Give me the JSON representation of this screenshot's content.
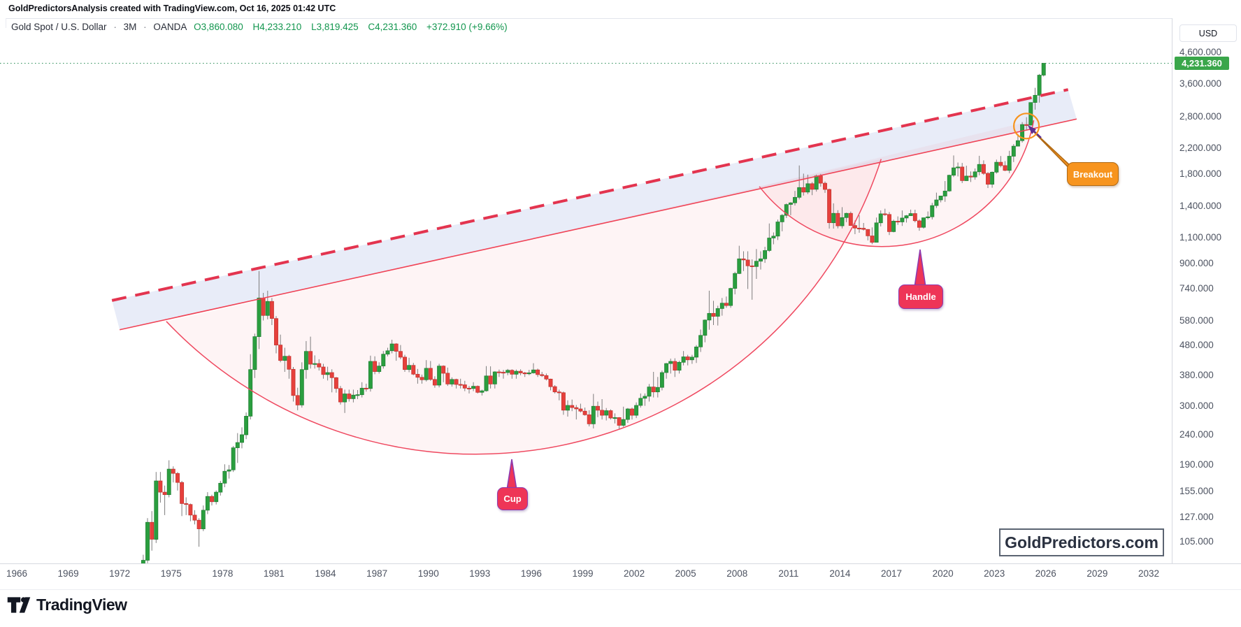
{
  "header": {
    "annotation": "GoldPredictorsAnalysis created with TradingView.com, Oct 16, 2025 01:42 UTC",
    "legend": {
      "symbol": "Gold Spot / U.S. Dollar",
      "sep": "·",
      "interval": "3M",
      "exchange": "OANDA",
      "open": "O3,860.080",
      "high": "H4,233.210",
      "low": "L3,819.425",
      "close": "C4,231.360",
      "change": "+372.910 (+9.66%)"
    }
  },
  "price_axis": {
    "currency": "USD",
    "last_price": {
      "label": "4,231.360",
      "value": 4231.36
    },
    "ticks": [
      {
        "label": "4,600.000",
        "value": 4600
      },
      {
        "label": "3,600.000",
        "value": 3600
      },
      {
        "label": "2,800.000",
        "value": 2800
      },
      {
        "label": "2,200.000",
        "value": 2200
      },
      {
        "label": "1,800.000",
        "value": 1800
      },
      {
        "label": "1,400.000",
        "value": 1400
      },
      {
        "label": "1,100.000",
        "value": 1100
      },
      {
        "label": "900.000",
        "value": 900
      },
      {
        "label": "740.000",
        "value": 740
      },
      {
        "label": "580.000",
        "value": 580
      },
      {
        "label": "480.000",
        "value": 480
      },
      {
        "label": "380.000",
        "value": 380
      },
      {
        "label": "300.000",
        "value": 300
      },
      {
        "label": "240.000",
        "value": 240
      },
      {
        "label": "190.000",
        "value": 190
      },
      {
        "label": "155.000",
        "value": 155
      },
      {
        "label": "127.000",
        "value": 127
      },
      {
        "label": "105.000",
        "value": 105
      }
    ]
  },
  "time_axis": {
    "years": [
      1966,
      1969,
      1972,
      1975,
      1978,
      1981,
      1984,
      1987,
      1990,
      1993,
      1996,
      1999,
      2002,
      2005,
      2008,
      2011,
      2014,
      2017,
      2020,
      2023,
      2026,
      2029,
      2032
    ]
  },
  "annotations": {
    "cup": "Cup",
    "handle": "Handle",
    "breakout": "Breakout"
  },
  "watermark": {
    "text": "GoldPredictors.com"
  },
  "footer": {
    "logo_text": "TradingView"
  },
  "colors": {
    "up": "#2a9e3f",
    "up_border": "#1f7e31",
    "down": "#e6403c",
    "down_border": "#c2322e",
    "wick": "#7d7d7d",
    "trend_red": "#e3344f",
    "arc_red": "#ef4960",
    "band_blue": "rgba(150,170,225,0.22)",
    "pattern_pink": "rgba(238,96,110,0.065)",
    "orange": "#f7941e",
    "purple": "#5c2e91",
    "price_label_bg": "#3aa64a",
    "dotted_line": "#2a8c55"
  },
  "chart_data": {
    "type": "candlestick",
    "title": "Gold Spot / U.S. Dollar",
    "interval": "3M",
    "exchange": "OANDA",
    "scale": "log",
    "x_domain_years": [
      1966,
      2032
    ],
    "x_tick_step_years": 3,
    "y_ticks": [
      4600,
      3600,
      2800,
      2200,
      1800,
      1400,
      1100,
      900,
      740,
      580,
      480,
      380,
      300,
      240,
      190,
      155,
      127,
      105
    ],
    "current_bar": {
      "open": 3860.08,
      "high": 4233.21,
      "low": 3819.425,
      "close": 4231.36,
      "change": 372.91,
      "change_pct": 9.66
    },
    "first_candle": "1973Q2",
    "candles_ohlc": [
      [
        85,
        95,
        82,
        91
      ],
      [
        91,
        126,
        89,
        122
      ],
      [
        122,
        133,
        98,
        107
      ],
      [
        107,
        180,
        104,
        168
      ],
      [
        168,
        180,
        142,
        154
      ],
      [
        154,
        162,
        129,
        151
      ],
      [
        151,
        197,
        148,
        184
      ],
      [
        184,
        188,
        166,
        178
      ],
      [
        178,
        180,
        156,
        166
      ],
      [
        166,
        168,
        128,
        141
      ],
      [
        141,
        148,
        129,
        140
      ],
      [
        140,
        141,
        123,
        129
      ],
      [
        129,
        134,
        120,
        124
      ],
      [
        124,
        126,
        101,
        116
      ],
      [
        116,
        139,
        114,
        134
      ],
      [
        134,
        154,
        130,
        149
      ],
      [
        149,
        151,
        139,
        143
      ],
      [
        143,
        156,
        140,
        154
      ],
      [
        154,
        168,
        150,
        165
      ],
      [
        165,
        191,
        160,
        181
      ],
      [
        181,
        190,
        171,
        183
      ],
      [
        183,
        220,
        180,
        217
      ],
      [
        217,
        243,
        193,
        226
      ],
      [
        226,
        254,
        216,
        240
      ],
      [
        240,
        285,
        232,
        277
      ],
      [
        277,
        447,
        270,
        397
      ],
      [
        397,
        524,
        372,
        512
      ],
      [
        512,
        850,
        465,
        690
      ],
      [
        690,
        718,
        580,
        603
      ],
      [
        603,
        730,
        585,
        672
      ],
      [
        672,
        690,
        560,
        589
      ],
      [
        589,
        600,
        450,
        480
      ],
      [
        480,
        520,
        420,
        426
      ],
      [
        426,
        470,
        390,
        440
      ],
      [
        440,
        445,
        370,
        398
      ],
      [
        398,
        405,
        310,
        325
      ],
      [
        325,
        345,
        290,
        302
      ],
      [
        302,
        420,
        296,
        397
      ],
      [
        397,
        495,
        370,
        457
      ],
      [
        457,
        512,
        400,
        414
      ],
      [
        414,
        443,
        400,
        416
      ],
      [
        416,
        430,
        394,
        405
      ],
      [
        405,
        415,
        370,
        382
      ],
      [
        382,
        406,
        365,
        388
      ],
      [
        388,
        398,
        333,
        373
      ],
      [
        373,
        375,
        332,
        343
      ],
      [
        343,
        350,
        303,
        309
      ],
      [
        309,
        340,
        284,
        329
      ],
      [
        329,
        340,
        310,
        317
      ],
      [
        317,
        340,
        308,
        326
      ],
      [
        326,
        339,
        316,
        327
      ],
      [
        327,
        360,
        320,
        344
      ],
      [
        344,
        356,
        335,
        343
      ],
      [
        343,
        442,
        335,
        423
      ],
      [
        423,
        440,
        383,
        391
      ],
      [
        391,
        420,
        385,
        408
      ],
      [
        408,
        458,
        400,
        447
      ],
      [
        447,
        470,
        440,
        459
      ],
      [
        459,
        500,
        450,
        484
      ],
      [
        484,
        487,
        425,
        457
      ],
      [
        457,
        480,
        430,
        437
      ],
      [
        437,
        445,
        390,
        397
      ],
      [
        397,
        435,
        389,
        410
      ],
      [
        410,
        418,
        380,
        383
      ],
      [
        383,
        399,
        356,
        374
      ],
      [
        374,
        382,
        356,
        367
      ],
      [
        367,
        427,
        362,
        401
      ],
      [
        401,
        424,
        364,
        368
      ],
      [
        368,
        377,
        345,
        352
      ],
      [
        352,
        415,
        346,
        408
      ],
      [
        408,
        410,
        360,
        386
      ],
      [
        386,
        403,
        350,
        355
      ],
      [
        355,
        374,
        348,
        368
      ],
      [
        368,
        370,
        343,
        354
      ],
      [
        354,
        370,
        343,
        353
      ],
      [
        353,
        364,
        336,
        344
      ],
      [
        344,
        350,
        330,
        343
      ],
      [
        343,
        360,
        336,
        349
      ],
      [
        349,
        351,
        330,
        333
      ],
      [
        333,
        340,
        325,
        337
      ],
      [
        337,
        408,
        335,
        378
      ],
      [
        378,
        407,
        343,
        355
      ],
      [
        355,
        392,
        343,
        390
      ],
      [
        390,
        397,
        375,
        389
      ],
      [
        389,
        396,
        370,
        388
      ],
      [
        388,
        399,
        380,
        395
      ],
      [
        395,
        398,
        370,
        383
      ],
      [
        383,
        397,
        370,
        392
      ],
      [
        392,
        398,
        380,
        387
      ],
      [
        387,
        390,
        375,
        384
      ],
      [
        384,
        396,
        380,
        387
      ],
      [
        387,
        417,
        385,
        396
      ],
      [
        396,
        400,
        375,
        382
      ],
      [
        382,
        390,
        375,
        379
      ],
      [
        379,
        385,
        365,
        369
      ],
      [
        369,
        370,
        338,
        348
      ],
      [
        348,
        352,
        330,
        334
      ],
      [
        334,
        340,
        313,
        332
      ],
      [
        332,
        335,
        280,
        290
      ],
      [
        290,
        313,
        276,
        301
      ],
      [
        301,
        315,
        288,
        296
      ],
      [
        296,
        302,
        270,
        293
      ],
      [
        293,
        305,
        285,
        288
      ],
      [
        288,
        296,
        278,
        280
      ],
      [
        280,
        290,
        256,
        261
      ],
      [
        261,
        329,
        252,
        299
      ],
      [
        299,
        310,
        275,
        290
      ],
      [
        290,
        316,
        270,
        279
      ],
      [
        279,
        295,
        268,
        289
      ],
      [
        289,
        292,
        270,
        273
      ],
      [
        273,
        283,
        262,
        274
      ],
      [
        274,
        275,
        250,
        258
      ],
      [
        258,
        298,
        255,
        270
      ],
      [
        270,
        295,
        263,
        293
      ],
      [
        293,
        296,
        270,
        279
      ],
      [
        279,
        308,
        273,
        301
      ],
      [
        301,
        330,
        296,
        318
      ],
      [
        318,
        330,
        300,
        323
      ],
      [
        323,
        355,
        310,
        347
      ],
      [
        347,
        390,
        320,
        334
      ],
      [
        334,
        375,
        320,
        346
      ],
      [
        346,
        394,
        338,
        388
      ],
      [
        388,
        418,
        370,
        416
      ],
      [
        416,
        432,
        385,
        423
      ],
      [
        423,
        433,
        375,
        395
      ],
      [
        395,
        425,
        385,
        420
      ],
      [
        420,
        458,
        410,
        438
      ],
      [
        438,
        445,
        410,
        428
      ],
      [
        428,
        445,
        415,
        437
      ],
      [
        437,
        480,
        418,
        473
      ],
      [
        473,
        541,
        455,
        517
      ],
      [
        517,
        585,
        490,
        582
      ],
      [
        582,
        730,
        540,
        613
      ],
      [
        613,
        675,
        560,
        599
      ],
      [
        599,
        650,
        558,
        636
      ],
      [
        636,
        690,
        602,
        663
      ],
      [
        663,
        698,
        640,
        651
      ],
      [
        651,
        747,
        640,
        743
      ],
      [
        743,
        845,
        710,
        834
      ],
      [
        834,
        1033,
        830,
        934
      ],
      [
        934,
        990,
        850,
        926
      ],
      [
        926,
        990,
        740,
        885
      ],
      [
        885,
        930,
        681,
        880
      ],
      [
        880,
        1007,
        800,
        917
      ],
      [
        917,
        990,
        860,
        934
      ],
      [
        934,
        1025,
        905,
        996
      ],
      [
        996,
        1227,
        985,
        1097
      ],
      [
        1097,
        1145,
        1045,
        1113
      ],
      [
        1113,
        1265,
        1080,
        1242
      ],
      [
        1242,
        1320,
        1155,
        1307
      ],
      [
        1307,
        1432,
        1280,
        1421
      ],
      [
        1421,
        1447,
        1308,
        1439
      ],
      [
        1439,
        1578,
        1410,
        1502
      ],
      [
        1502,
        1921,
        1478,
        1620
      ],
      [
        1620,
        1804,
        1522,
        1564
      ],
      [
        1564,
        1790,
        1540,
        1669
      ],
      [
        1669,
        1690,
        1527,
        1598
      ],
      [
        1598,
        1790,
        1570,
        1772
      ],
      [
        1772,
        1800,
        1630,
        1675
      ],
      [
        1675,
        1697,
        1555,
        1596
      ],
      [
        1596,
        1605,
        1180,
        1234
      ],
      [
        1234,
        1434,
        1180,
        1327
      ],
      [
        1327,
        1360,
        1182,
        1205
      ],
      [
        1205,
        1392,
        1182,
        1284
      ],
      [
        1284,
        1334,
        1240,
        1327
      ],
      [
        1327,
        1345,
        1206,
        1208
      ],
      [
        1208,
        1256,
        1130,
        1184
      ],
      [
        1184,
        1307,
        1142,
        1183
      ],
      [
        1183,
        1232,
        1162,
        1172
      ],
      [
        1172,
        1175,
        1077,
        1115
      ],
      [
        1115,
        1191,
        1046,
        1061
      ],
      [
        1061,
        1285,
        1060,
        1233
      ],
      [
        1233,
        1358,
        1200,
        1322
      ],
      [
        1322,
        1375,
        1302,
        1316
      ],
      [
        1316,
        1340,
        1122,
        1152
      ],
      [
        1152,
        1264,
        1146,
        1249
      ],
      [
        1249,
        1296,
        1214,
        1242
      ],
      [
        1242,
        1357,
        1204,
        1280
      ],
      [
        1280,
        1310,
        1236,
        1303
      ],
      [
        1303,
        1366,
        1302,
        1325
      ],
      [
        1325,
        1365,
        1238,
        1253
      ],
      [
        1253,
        1268,
        1160,
        1191
      ],
      [
        1191,
        1285,
        1180,
        1282
      ],
      [
        1282,
        1347,
        1266,
        1292
      ],
      [
        1292,
        1439,
        1266,
        1409
      ],
      [
        1409,
        1557,
        1383,
        1472
      ],
      [
        1472,
        1520,
        1445,
        1517
      ],
      [
        1517,
        1703,
        1451,
        1577
      ],
      [
        1577,
        1789,
        1568,
        1781
      ],
      [
        1781,
        2075,
        1757,
        1886
      ],
      [
        1886,
        1965,
        1765,
        1898
      ],
      [
        1898,
        1959,
        1677,
        1708
      ],
      [
        1708,
        1917,
        1706,
        1770
      ],
      [
        1770,
        1834,
        1690,
        1757
      ],
      [
        1757,
        1877,
        1721,
        1829
      ],
      [
        1829,
        2070,
        1780,
        1937
      ],
      [
        1937,
        1998,
        1786,
        1807
      ],
      [
        1807,
        1825,
        1614,
        1661
      ],
      [
        1661,
        1833,
        1617,
        1824
      ],
      [
        1824,
        2010,
        1804,
        1969
      ],
      [
        1969,
        2067,
        1893,
        1919
      ],
      [
        1919,
        1987,
        1839,
        1849
      ],
      [
        1849,
        2152,
        1810,
        2063
      ],
      [
        2063,
        2265,
        1973,
        2230
      ],
      [
        2230,
        2450,
        2228,
        2327
      ],
      [
        2327,
        2685,
        2293,
        2635
      ],
      [
        2635,
        2790,
        2536,
        2624
      ],
      [
        2624,
        3128,
        2614,
        3124
      ],
      [
        3124,
        3500,
        2956,
        3303
      ],
      [
        3303,
        3895,
        3121,
        3859
      ],
      [
        3860.08,
        4233.21,
        3819.425,
        4231.36
      ]
    ],
    "overlays": {
      "channel_top_dashed": {
        "t1": 1971.55,
        "p1": 677,
        "t2": 2027.3,
        "p2": 3452
      },
      "channel_bottom_solid": {
        "t1": 1972.0,
        "p1": 540,
        "t2": 2027.8,
        "p2": 2750
      },
      "cup_arc": {
        "start": {
          "t": 1974.72,
          "p": 576
        },
        "bottom": {
          "t": 1994.4,
          "p": 208
        },
        "end": {
          "t": 2016.4,
          "p": 2018
        }
      },
      "handle_arc": {
        "start": {
          "t": 2009.3,
          "p": 1633
        },
        "bottom": {
          "t": 2017.2,
          "p": 1031
        },
        "end": {
          "t": 2025.3,
          "p": 2723
        }
      },
      "breakout_circle": {
        "t": 2024.87,
        "p": 2605,
        "radius_px": 18
      },
      "last_price_line": {
        "p": 4231.36
      }
    }
  }
}
